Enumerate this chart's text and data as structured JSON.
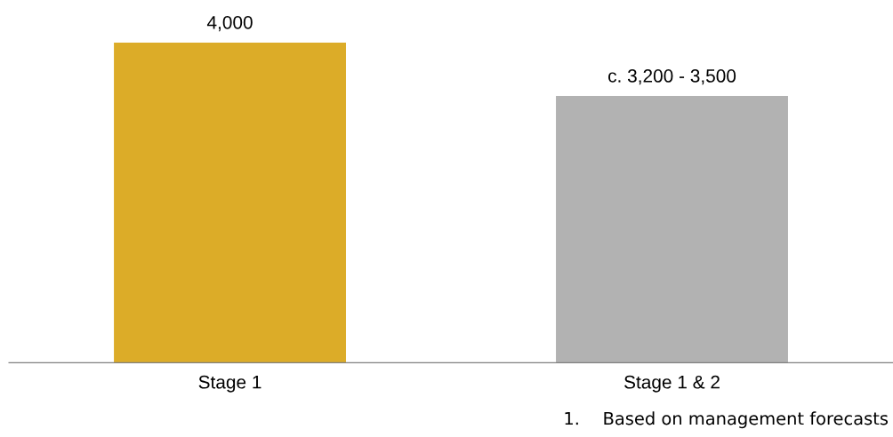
{
  "chart_data": {
    "type": "bar",
    "categories": [
      "Stage 1",
      "Stage 1 & 2"
    ],
    "values": [
      4000,
      3333
    ],
    "colors": [
      "#dcac28",
      "#b2b2b2"
    ],
    "value_labels": [
      "4,000",
      "c. 3,200 - 3,500"
    ],
    "annotations": [
      "1.  Based on management forecasts"
    ],
    "grid": false,
    "legend": false
  }
}
